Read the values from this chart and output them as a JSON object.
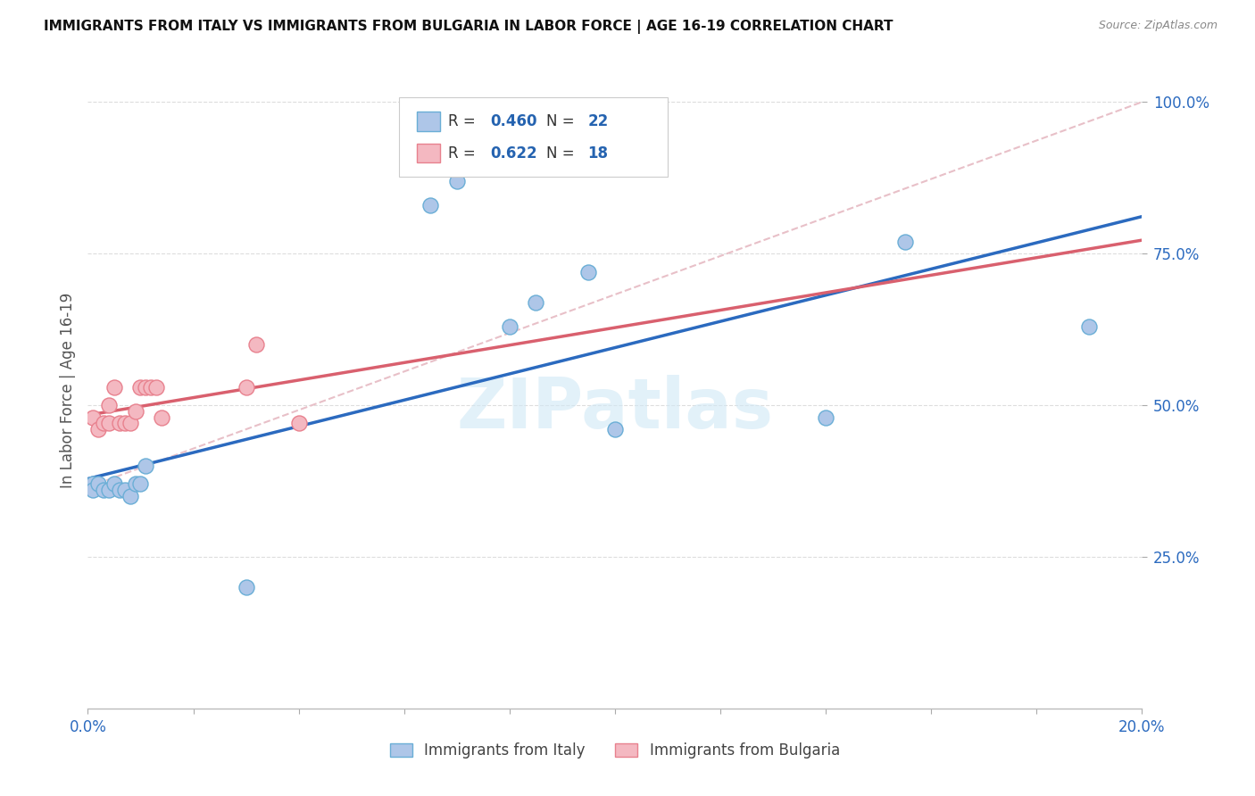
{
  "title": "IMMIGRANTS FROM ITALY VS IMMIGRANTS FROM BULGARIA IN LABOR FORCE | AGE 16-19 CORRELATION CHART",
  "source": "Source: ZipAtlas.com",
  "ylabel": "In Labor Force | Age 16-19",
  "xlim": [
    0.0,
    0.2
  ],
  "ylim": [
    0.0,
    1.05
  ],
  "yticks": [
    0.25,
    0.5,
    0.75,
    1.0
  ],
  "ytick_labels": [
    "25.0%",
    "50.0%",
    "75.0%",
    "100.0%"
  ],
  "xticks": [
    0.0,
    0.02,
    0.04,
    0.06,
    0.08,
    0.1,
    0.12,
    0.14,
    0.16,
    0.18,
    0.2
  ],
  "xtick_labels": [
    "0.0%",
    "",
    "",
    "",
    "",
    "",
    "",
    "",
    "",
    "",
    "20.0%"
  ],
  "italy_color": "#aec6e8",
  "italy_edge_color": "#6aaed6",
  "bulgaria_color": "#f4b8c1",
  "bulgaria_edge_color": "#e8818e",
  "italy_R": 0.46,
  "italy_N": 22,
  "bulgaria_R": 0.622,
  "bulgaria_N": 18,
  "italy_line_color": "#2b6abf",
  "bulgaria_line_color": "#d9606e",
  "ref_line_color": "#e8c0c8",
  "tick_color": "#aaaaaa",
  "grid_color": "#dddddd",
  "label_color": "#555555",
  "legend_val_color": "#2563b0",
  "legend_border_color": "#cccccc",
  "watermark_color": "#d0e8f5",
  "watermark_text": "ZIPatlas",
  "italy_x": [
    0.001,
    0.001,
    0.002,
    0.003,
    0.004,
    0.005,
    0.006,
    0.007,
    0.008,
    0.009,
    0.01,
    0.011,
    0.03,
    0.065,
    0.07,
    0.08,
    0.085,
    0.095,
    0.1,
    0.14,
    0.155,
    0.19
  ],
  "italy_y": [
    0.37,
    0.36,
    0.37,
    0.36,
    0.36,
    0.37,
    0.36,
    0.36,
    0.35,
    0.37,
    0.37,
    0.4,
    0.2,
    0.83,
    0.87,
    0.63,
    0.67,
    0.72,
    0.46,
    0.48,
    0.77,
    0.63
  ],
  "bulgaria_x": [
    0.001,
    0.002,
    0.003,
    0.004,
    0.004,
    0.005,
    0.006,
    0.007,
    0.008,
    0.009,
    0.01,
    0.011,
    0.012,
    0.013,
    0.014,
    0.03,
    0.032,
    0.04
  ],
  "bulgaria_y": [
    0.48,
    0.46,
    0.47,
    0.5,
    0.47,
    0.53,
    0.47,
    0.47,
    0.47,
    0.49,
    0.53,
    0.53,
    0.53,
    0.53,
    0.48,
    0.53,
    0.6,
    0.47
  ]
}
